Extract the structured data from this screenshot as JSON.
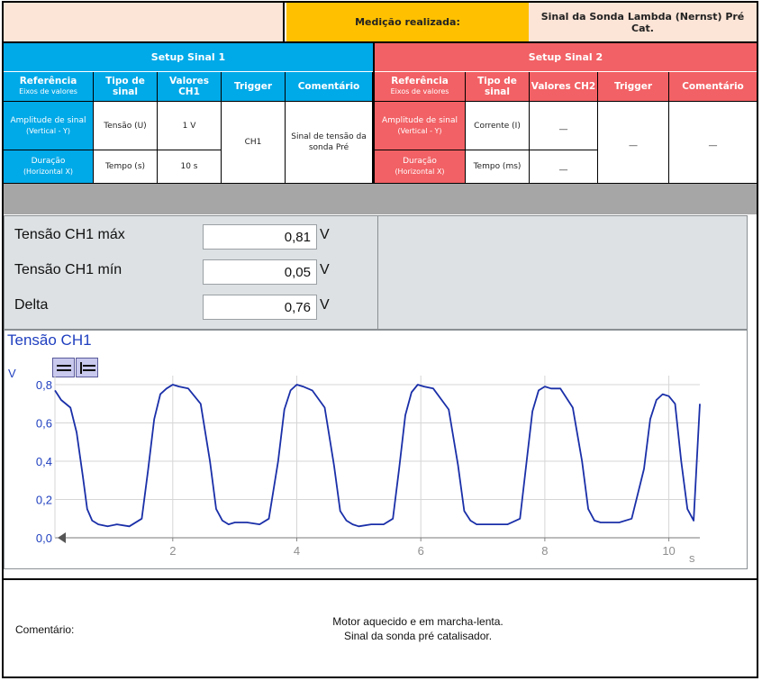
{
  "header": {
    "label": "Medição realizada:",
    "value": "Sinal da Sonda Lambda (Nernst) Pré Cat."
  },
  "setup1": {
    "title": "Setup Sinal 1",
    "columns": {
      "ref_title": "Referência",
      "ref_sub": "Eixos de valores",
      "tipo": "Tipo de sinal",
      "valores": "Valores CH1",
      "trigger": "Trigger",
      "comentario": "Comentário"
    },
    "rows": [
      {
        "label": "Amplitude de sinal",
        "sub": "(Vertical - Y)",
        "tipo": "Tensão (U)",
        "valor": "1 V"
      },
      {
        "label": "Duração",
        "sub": "(Horizontal X)",
        "tipo": "Tempo (s)",
        "valor": "10 s"
      }
    ],
    "trigger": "CH1",
    "comentario": "Sinal de tensão da sonda Pré"
  },
  "setup2": {
    "title": "Setup Sinal 2",
    "columns": {
      "ref_title": "Referência",
      "ref_sub": "Eixos de valores",
      "tipo": "Tipo de sinal",
      "valores": "Valores CH2",
      "trigger": "Trigger",
      "comentario": "Comentário"
    },
    "rows": [
      {
        "label": "Amplitude de sinal",
        "sub": "(Vertical - Y)",
        "tipo": "Corrente (I)",
        "valor": "__"
      },
      {
        "label": "Duração",
        "sub": "(Horizontal X)",
        "tipo": "Tempo (ms)",
        "valor": "__"
      }
    ],
    "trigger": "__",
    "comentario": "__"
  },
  "measurements": [
    {
      "label": "Tensão CH1 máx",
      "value": "0,81",
      "unit": "V"
    },
    {
      "label": "Tensão CH1 mín",
      "value": "0,05",
      "unit": "V"
    },
    {
      "label": "Delta",
      "value": "0,76",
      "unit": "V"
    }
  ],
  "chart_data": {
    "type": "line",
    "title": "Tensão CH1",
    "ylabel": "V",
    "xlabel": "s",
    "ylim": [
      0,
      0.8
    ],
    "xlim": [
      0.1,
      10.5
    ],
    "yticks": [
      "0,0",
      "0,2",
      "0,4",
      "0,6",
      "0,8"
    ],
    "xticks": [
      "2",
      "4",
      "6",
      "8",
      "10"
    ],
    "line_color": "#1a2fa8",
    "grid": true,
    "series": [
      {
        "x": [
          0.1,
          0.2,
          0.35,
          0.45,
          0.55,
          0.62,
          0.7,
          0.8,
          0.95,
          1.1,
          1.3,
          1.5,
          1.6,
          1.7,
          1.8,
          1.9,
          2.0,
          2.1,
          2.25,
          2.45,
          2.6,
          2.7,
          2.8,
          2.9,
          3.0,
          3.2,
          3.4,
          3.55,
          3.7,
          3.8,
          3.9,
          4.0,
          4.1,
          4.25,
          4.45,
          4.6,
          4.7,
          4.8,
          4.9,
          5.0,
          5.2,
          5.4,
          5.55,
          5.65,
          5.75,
          5.85,
          5.95,
          6.05,
          6.2,
          6.45,
          6.6,
          6.7,
          6.8,
          6.9,
          7.0,
          7.2,
          7.4,
          7.6,
          7.7,
          7.8,
          7.9,
          8.0,
          8.1,
          8.25,
          8.45,
          8.6,
          8.7,
          8.8,
          8.9,
          9.0,
          9.2,
          9.4,
          9.6,
          9.7,
          9.8,
          9.9,
          10.0,
          10.1,
          10.2,
          10.3,
          10.4,
          10.45,
          10.5
        ],
        "y": [
          0.77,
          0.72,
          0.68,
          0.55,
          0.32,
          0.15,
          0.09,
          0.07,
          0.06,
          0.07,
          0.06,
          0.1,
          0.35,
          0.62,
          0.75,
          0.78,
          0.8,
          0.79,
          0.78,
          0.7,
          0.4,
          0.15,
          0.09,
          0.07,
          0.08,
          0.08,
          0.07,
          0.1,
          0.4,
          0.67,
          0.77,
          0.8,
          0.79,
          0.77,
          0.68,
          0.38,
          0.14,
          0.09,
          0.07,
          0.06,
          0.07,
          0.07,
          0.1,
          0.36,
          0.64,
          0.76,
          0.8,
          0.79,
          0.78,
          0.67,
          0.38,
          0.14,
          0.09,
          0.07,
          0.07,
          0.07,
          0.07,
          0.1,
          0.38,
          0.66,
          0.77,
          0.79,
          0.78,
          0.78,
          0.68,
          0.4,
          0.15,
          0.09,
          0.08,
          0.08,
          0.08,
          0.1,
          0.36,
          0.62,
          0.72,
          0.75,
          0.74,
          0.7,
          0.4,
          0.15,
          0.09,
          0.4,
          0.7
        ]
      }
    ]
  },
  "footer": {
    "label": "Comentário:",
    "line1": "Motor aquecido e em marcha-lenta.",
    "line2": "Sinal da sonda pré catalisador."
  }
}
